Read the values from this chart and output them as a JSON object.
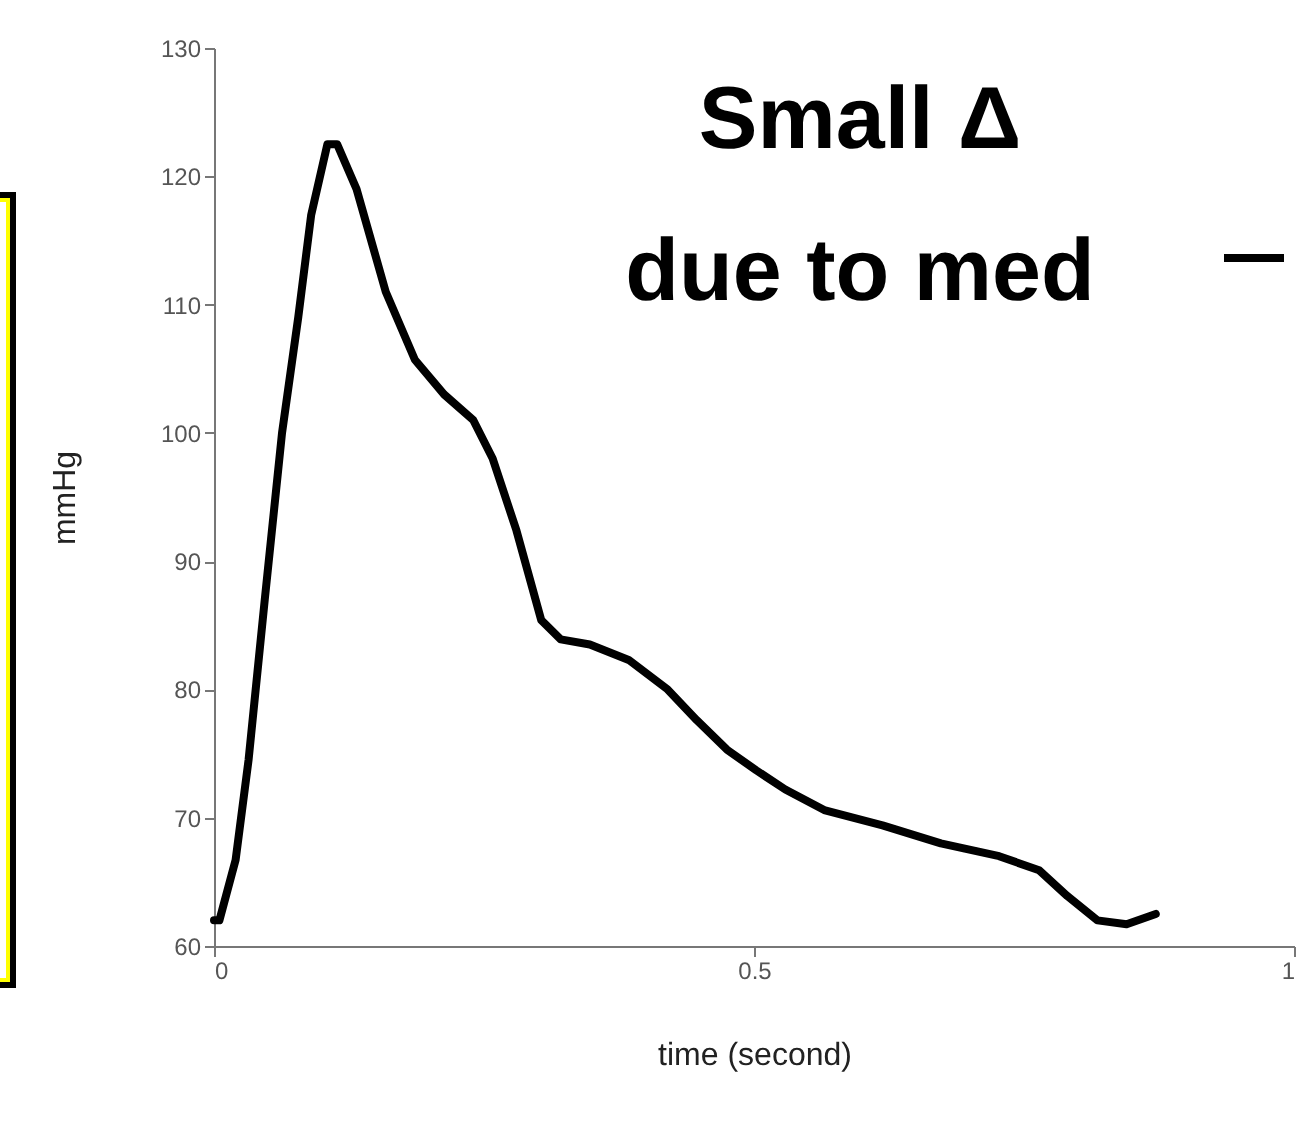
{
  "chart_data": {
    "type": "line",
    "xlabel": "time (second)",
    "ylabel": "mmHg",
    "annotations": [
      "Small Δ\ndue to med"
    ],
    "x": [
      0,
      0.005,
      0.02,
      0.032,
      0.047,
      0.063,
      0.078,
      0.09,
      0.105,
      0.114,
      0.132,
      0.159,
      0.186,
      0.213,
      0.24,
      0.258,
      0.28,
      0.303,
      0.321,
      0.348,
      0.384,
      0.42,
      0.447,
      0.475,
      0.502,
      0.529,
      0.565,
      0.619,
      0.673,
      0.727,
      0.764,
      0.79,
      0.818,
      0.845,
      0.872
    ],
    "series": [
      {
        "color": "#000000",
        "values": [
          62,
          62,
          66.7,
          74.5,
          87,
          100,
          109,
          117,
          122.5,
          122.5,
          119,
          111,
          105.7,
          103,
          101,
          98,
          92.4,
          85.4,
          83.9,
          83.5,
          82.3,
          80,
          77.6,
          75.3,
          73.7,
          72.2,
          70.6,
          69.4,
          68,
          67,
          65.9,
          63.9,
          62,
          61.7,
          62.5
        ]
      }
    ],
    "xlim": [
      0,
      1
    ],
    "xticks": [
      {
        "value": 0,
        "label": "0"
      },
      0.5,
      {
        "value": 1,
        "label": "1"
      }
    ],
    "ylim": [
      60,
      130
    ],
    "yticks": [
      60,
      70,
      80,
      90,
      100,
      110,
      120,
      130
    ],
    "grid": false,
    "marker": "none",
    "line_style": "solid"
  }
}
